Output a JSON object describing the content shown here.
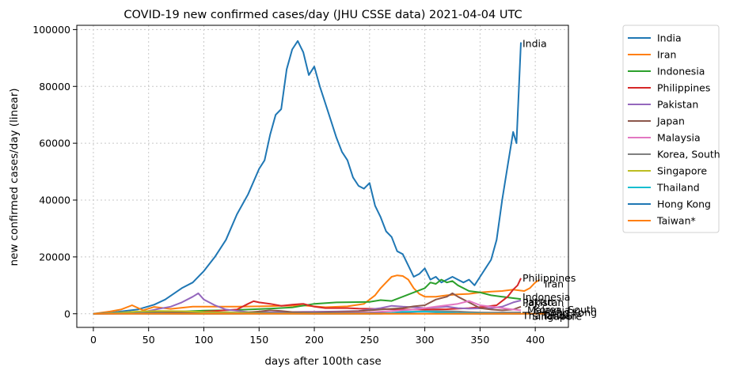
{
  "chart_data": {
    "type": "line",
    "title": "COVID-19 new confirmed cases/day (JHU CSSE data) 2021-04-04 UTC",
    "xlabel": "days after 100th case",
    "ylabel": "new confirmed cases/day (linear)",
    "xlim": [
      -15,
      430
    ],
    "ylim": [
      -4800,
      101500
    ],
    "xticks": [
      0,
      50,
      100,
      150,
      200,
      250,
      300,
      350,
      400
    ],
    "yticks": [
      0,
      20000,
      40000,
      60000,
      80000,
      100000
    ],
    "grid": true,
    "legend_position": "outside-right",
    "series": [
      {
        "name": "India",
        "color": "#1f77b4",
        "label": "India",
        "x": [
          0,
          20,
          40,
          55,
          65,
          80,
          90,
          100,
          110,
          120,
          130,
          140,
          150,
          155,
          160,
          165,
          170,
          175,
          180,
          185,
          190,
          195,
          200,
          205,
          210,
          215,
          220,
          225,
          230,
          235,
          240,
          245,
          250,
          255,
          260,
          265,
          270,
          275,
          280,
          285,
          290,
          295,
          300,
          305,
          310,
          315,
          320,
          325,
          330,
          335,
          340,
          345,
          350,
          355,
          360,
          365,
          370,
          375,
          380,
          383,
          387
        ],
        "y": [
          0,
          600,
          1500,
          3200,
          5000,
          9000,
          11000,
          15000,
          20000,
          26000,
          35000,
          42000,
          51000,
          54000,
          63000,
          70000,
          72000,
          86000,
          93000,
          96000,
          92000,
          84000,
          87000,
          80000,
          74000,
          68000,
          62000,
          57000,
          54000,
          48000,
          45000,
          44000,
          46000,
          38000,
          34000,
          29000,
          27000,
          22000,
          21000,
          17000,
          13000,
          14000,
          16000,
          12000,
          13000,
          11000,
          12000,
          13000,
          12000,
          11000,
          12000,
          10000,
          13000,
          16000,
          19000,
          26000,
          40000,
          52000,
          64000,
          60000,
          95500
        ]
      },
      {
        "name": "Iran",
        "color": "#ff7f0e",
        "label": "Iran",
        "x": [
          0,
          15,
          25,
          35,
          45,
          55,
          70,
          90,
          110,
          130,
          150,
          170,
          190,
          210,
          230,
          245,
          255,
          260,
          265,
          270,
          275,
          280,
          285,
          290,
          295,
          300,
          310,
          320,
          330,
          340,
          350,
          360,
          370,
          380,
          390,
          395,
          400,
          404
        ],
        "y": [
          0,
          800,
          1500,
          3000,
          1200,
          2400,
          1700,
          2500,
          2500,
          2500,
          2600,
          2800,
          2900,
          2300,
          2600,
          3500,
          6500,
          9000,
          11000,
          13000,
          13500,
          13300,
          12000,
          9000,
          7000,
          6000,
          6000,
          6500,
          6800,
          7000,
          7500,
          7800,
          8000,
          8500,
          8000,
          9000,
          11000,
          12000
        ]
      },
      {
        "name": "Indonesia",
        "color": "#2ca02c",
        "label": "Indonesia",
        "x": [
          0,
          20,
          40,
          60,
          80,
          100,
          120,
          140,
          160,
          180,
          200,
          220,
          240,
          250,
          260,
          270,
          280,
          290,
          300,
          305,
          310,
          315,
          320,
          325,
          330,
          340,
          350,
          360,
          370,
          380,
          387
        ],
        "y": [
          0,
          200,
          400,
          600,
          800,
          1100,
          1200,
          1500,
          1800,
          2200,
          3500,
          4000,
          4100,
          4200,
          4800,
          4500,
          6000,
          7500,
          9000,
          11000,
          10500,
          12000,
          11000,
          11500,
          10000,
          8000,
          7500,
          6500,
          6000,
          5500,
          5200
        ]
      },
      {
        "name": "Philippines",
        "color": "#d62728",
        "label": "Philippines",
        "x": [
          0,
          30,
          60,
          90,
          110,
          130,
          140,
          145,
          150,
          160,
          170,
          180,
          190,
          200,
          210,
          220,
          230,
          240,
          260,
          280,
          300,
          320,
          340,
          355,
          365,
          370,
          375,
          380,
          384,
          387
        ],
        "y": [
          0,
          200,
          300,
          400,
          1000,
          1500,
          3500,
          4400,
          4000,
          3500,
          2800,
          3200,
          3500,
          2500,
          2000,
          2000,
          2000,
          1800,
          1700,
          1500,
          1500,
          1600,
          2000,
          2500,
          3000,
          4500,
          6000,
          8500,
          10000,
          12500
        ]
      },
      {
        "name": "Pakistan",
        "color": "#9467bd",
        "label": "Pakistan",
        "x": [
          0,
          30,
          50,
          60,
          70,
          80,
          90,
          95,
          100,
          110,
          120,
          140,
          160,
          180,
          200,
          220,
          240,
          260,
          270,
          280,
          290,
          300,
          310,
          320,
          330,
          340,
          360,
          370,
          380,
          387
        ],
        "y": [
          0,
          300,
          1000,
          1800,
          2500,
          4000,
          6000,
          7200,
          5000,
          3000,
          1500,
          600,
          500,
          600,
          700,
          800,
          1000,
          2000,
          2800,
          2500,
          2300,
          2000,
          2200,
          2500,
          2000,
          1800,
          2000,
          2500,
          4000,
          4700
        ]
      },
      {
        "name": "Japan",
        "color": "#8c564b",
        "label": "Japan",
        "x": [
          0,
          30,
          50,
          70,
          90,
          110,
          130,
          150,
          160,
          170,
          180,
          190,
          200,
          220,
          240,
          260,
          280,
          290,
          300,
          310,
          320,
          325,
          330,
          340,
          350,
          360,
          370,
          380,
          387
        ],
        "y": [
          0,
          100,
          200,
          500,
          600,
          300,
          200,
          800,
          1200,
          1000,
          600,
          500,
          400,
          600,
          900,
          1500,
          2000,
          2600,
          3000,
          5000,
          6000,
          7200,
          6000,
          4000,
          2000,
          1500,
          1200,
          1500,
          2500
        ]
      },
      {
        "name": "Malaysia",
        "color": "#e377c2",
        "label": "Malaysia",
        "x": [
          0,
          50,
          100,
          150,
          200,
          250,
          270,
          280,
          290,
          300,
          310,
          320,
          330,
          340,
          350,
          360,
          370,
          380,
          387
        ],
        "y": [
          0,
          100,
          50,
          50,
          100,
          500,
          1000,
          1200,
          1500,
          2000,
          2500,
          3000,
          3500,
          4500,
          3000,
          2500,
          2000,
          1500,
          1200
        ]
      },
      {
        "name": "Korea, South",
        "color": "#7f7f7f",
        "label": "Korea, South",
        "x": [
          0,
          20,
          40,
          80,
          120,
          160,
          200,
          240,
          270,
          280,
          290,
          300,
          310,
          320,
          330,
          340,
          350,
          360,
          370,
          380,
          387
        ],
        "y": [
          0,
          400,
          200,
          50,
          50,
          100,
          250,
          200,
          300,
          500,
          700,
          900,
          1000,
          900,
          800,
          600,
          450,
          400,
          450,
          450,
          500
        ]
      },
      {
        "name": "Singapore",
        "color": "#bcbd22",
        "label": "Singapore",
        "x": [
          0,
          20,
          40,
          60,
          80,
          100,
          130,
          160,
          200,
          387
        ],
        "y": [
          0,
          300,
          800,
          1000,
          900,
          600,
          400,
          200,
          50,
          20
        ]
      },
      {
        "name": "Thailand",
        "color": "#17becf",
        "label": "Thailand",
        "x": [
          0,
          20,
          50,
          100,
          200,
          260,
          270,
          280,
          300,
          330,
          360,
          387
        ],
        "y": [
          0,
          100,
          50,
          10,
          10,
          20,
          300,
          700,
          800,
          300,
          100,
          50
        ]
      },
      {
        "name": "Hong Kong",
        "color": "#1f77b4",
        "label": "Hong Kong",
        "x": [
          0,
          30,
          60,
          100,
          130,
          150,
          170,
          200,
          250,
          280,
          300,
          330,
          360,
          390,
          400
        ],
        "y": [
          0,
          20,
          10,
          20,
          50,
          100,
          80,
          20,
          50,
          100,
          80,
          50,
          20,
          10,
          10
        ]
      },
      {
        "name": "Taiwan*",
        "color": "#ff7f0e",
        "label": "Taiwan*",
        "x": [
          0,
          50,
          100,
          200,
          300,
          400,
          410
        ],
        "y": [
          0,
          5,
          2,
          2,
          3,
          5,
          5
        ]
      }
    ]
  }
}
